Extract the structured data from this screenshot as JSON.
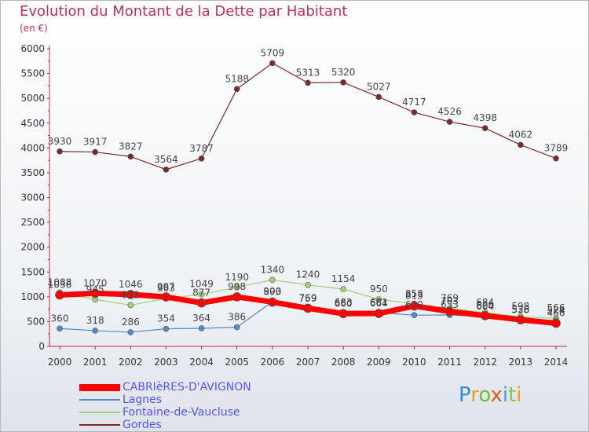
{
  "chart_data": {
    "type": "line",
    "title": "Evolution du Montant de la Dette par Habitant",
    "ylabel": "(en €)",
    "x": [
      "2000",
      "2001",
      "2002",
      "2003",
      "2004",
      "2005",
      "2006",
      "2007",
      "2008",
      "2009",
      "2010",
      "2011",
      "2012",
      "2013",
      "2014"
    ],
    "ylim": [
      0,
      6000
    ],
    "yticks": [
      0,
      500,
      1000,
      1500,
      2000,
      2500,
      3000,
      3500,
      4000,
      4500,
      5000,
      5500,
      6000
    ],
    "grid": false,
    "legend_position": "bottom-left",
    "series": [
      {
        "name": "Gordes",
        "color": "#7b2a2a",
        "values": [
          3930,
          3917,
          3827,
          3564,
          3787,
          5188,
          5709,
          5313,
          5320,
          5027,
          4717,
          4526,
          4398,
          4062,
          3789
        ]
      },
      {
        "name": "Fontaine-de-Vaucluse",
        "color": "#9ed27a",
        "values": [
          1088,
          945,
          832,
          963,
          1049,
          1190,
          1340,
          1240,
          1154,
          950,
          858,
          769,
          684,
          598,
          566
        ]
      },
      {
        "name": "Lagnes",
        "color": "#4f8ec6",
        "values": [
          360,
          318,
          286,
          354,
          364,
          386,
          900,
          759,
          683,
          681,
          630,
          633,
          604,
          528,
          524
        ]
      },
      {
        "name": "CABRIèRES-D'AVIGNON",
        "color": "#ff0000",
        "values": [
          1036,
          1070,
          1046,
          997,
          877,
          998,
          893,
          769,
          660,
          664,
          813,
          703,
          620,
          536,
          466
        ]
      }
    ]
  },
  "logo": {
    "p": "P",
    "r": "r",
    "o": "o",
    "x": "x",
    "i": "i",
    "t": "t",
    "i2": "i"
  }
}
